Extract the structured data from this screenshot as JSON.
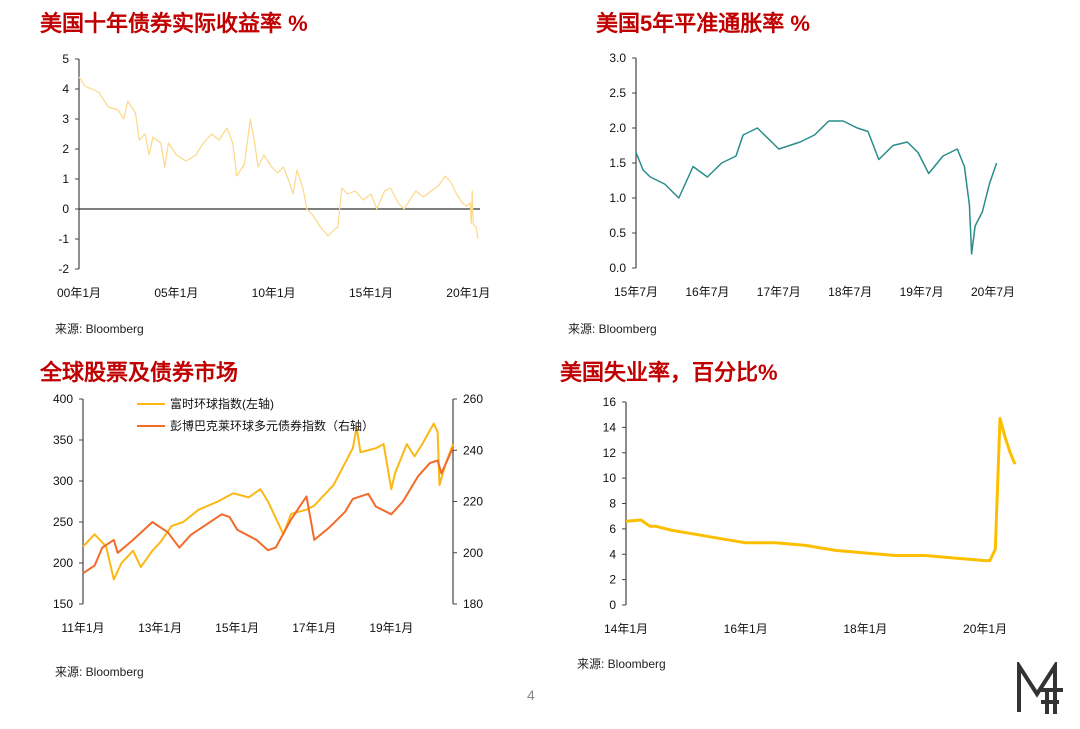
{
  "page_number": "4",
  "logo_text": "MF",
  "source_label": "来源: Bloomberg",
  "chart_data": [
    {
      "type": "line",
      "title": "美国十年债券实际收益率 %",
      "source": "来源: Bloomberg",
      "ylim": [
        -2,
        5
      ],
      "yticks": [
        "-2",
        "-1",
        "0",
        "1",
        "2",
        "3",
        "4",
        "5"
      ],
      "xlim": [
        2000.0,
        2020.6
      ],
      "xticks": [
        {
          "x": 2000.0,
          "label": "00年1月"
        },
        {
          "x": 2005.0,
          "label": "05年1月"
        },
        {
          "x": 2010.0,
          "label": "10年1月"
        },
        {
          "x": 2015.0,
          "label": "15年1月"
        },
        {
          "x": 2020.0,
          "label": "20年1月"
        }
      ],
      "zero_line": true,
      "grid": false,
      "series": [
        {
          "color": "#fcd98a",
          "x": [
            2000.0,
            2000.3,
            2001.0,
            2001.5,
            2002.0,
            2002.3,
            2002.5,
            2002.9,
            2003.1,
            2003.4,
            2003.6,
            2003.8,
            2004.2,
            2004.4,
            2004.6,
            2005.0,
            2005.5,
            2006.0,
            2006.4,
            2006.8,
            2007.2,
            2007.6,
            2007.9,
            2008.1,
            2008.5,
            2008.8,
            2009.0,
            2009.2,
            2009.5,
            2009.9,
            2010.2,
            2010.5,
            2010.8,
            2011.0,
            2011.2,
            2011.5,
            2011.7,
            2012.0,
            2012.4,
            2012.8,
            2013.1,
            2013.3,
            2013.5,
            2013.8,
            2014.2,
            2014.6,
            2015.0,
            2015.3,
            2015.7,
            2016.0,
            2016.4,
            2016.7,
            2017.0,
            2017.3,
            2017.7,
            2018.1,
            2018.5,
            2018.8,
            2019.1,
            2019.4,
            2019.7,
            2019.9,
            2020.1,
            2020.15,
            2020.2,
            2020.25,
            2020.4,
            2020.5
          ],
          "y": [
            4.4,
            4.1,
            3.9,
            3.4,
            3.3,
            3.0,
            3.6,
            3.2,
            2.3,
            2.5,
            1.8,
            2.4,
            2.2,
            1.4,
            2.2,
            1.8,
            1.6,
            1.8,
            2.2,
            2.5,
            2.3,
            2.7,
            2.2,
            1.1,
            1.5,
            3.0,
            2.3,
            1.4,
            1.8,
            1.4,
            1.2,
            1.4,
            0.9,
            0.5,
            1.3,
            0.7,
            0.0,
            -0.2,
            -0.6,
            -0.9,
            -0.7,
            -0.6,
            0.7,
            0.5,
            0.6,
            0.3,
            0.5,
            0.0,
            0.6,
            0.7,
            0.2,
            0.0,
            0.3,
            0.6,
            0.4,
            0.6,
            0.8,
            1.1,
            0.9,
            0.5,
            0.2,
            0.1,
            0.2,
            -0.5,
            0.6,
            -0.5,
            -0.6,
            -1.0
          ]
        }
      ]
    },
    {
      "type": "line",
      "title": "美国5年平准通胀率 %",
      "source": "来源: Bloomberg",
      "ylim": [
        0,
        3
      ],
      "yticks": [
        "0.0",
        "0.5",
        "1.0",
        "1.5",
        "2.0",
        "2.5",
        "3.0"
      ],
      "xlim": [
        2015.5,
        2020.5
      ],
      "xticks": [
        {
          "x": 2015.5,
          "label": "15年7月"
        },
        {
          "x": 2016.5,
          "label": "16年7月"
        },
        {
          "x": 2017.5,
          "label": "17年7月"
        },
        {
          "x": 2018.5,
          "label": "18年7月"
        },
        {
          "x": 2019.5,
          "label": "19年7月"
        },
        {
          "x": 2020.5,
          "label": "20年7月"
        }
      ],
      "grid": false,
      "series": [
        {
          "color": "#2a8c8a",
          "x": [
            2015.5,
            2015.6,
            2015.7,
            2015.9,
            2016.1,
            2016.3,
            2016.5,
            2016.7,
            2016.9,
            2017.0,
            2017.2,
            2017.35,
            2017.5,
            2017.8,
            2018.0,
            2018.2,
            2018.4,
            2018.6,
            2018.75,
            2018.9,
            2019.1,
            2019.3,
            2019.45,
            2019.6,
            2019.8,
            2020.0,
            2020.1,
            2020.17,
            2020.2,
            2020.25,
            2020.35,
            2020.45,
            2020.55
          ],
          "y": [
            1.65,
            1.4,
            1.3,
            1.2,
            1.0,
            1.45,
            1.3,
            1.5,
            1.6,
            1.9,
            2.0,
            1.85,
            1.7,
            1.8,
            1.9,
            2.1,
            2.1,
            2.0,
            1.95,
            1.55,
            1.75,
            1.8,
            1.65,
            1.35,
            1.6,
            1.7,
            1.45,
            0.9,
            0.2,
            0.6,
            0.8,
            1.2,
            1.5
          ]
        }
      ]
    },
    {
      "type": "line",
      "title": "全球股票及债券市场",
      "source": "来源: Bloomberg",
      "ylim": [
        150,
        400
      ],
      "yticks": [
        "150",
        "200",
        "250",
        "300",
        "350",
        "400"
      ],
      "y2lim": [
        180,
        260
      ],
      "y2ticks": [
        "180",
        "200",
        "220",
        "240",
        "260"
      ],
      "xlim": [
        2011.0,
        2020.6
      ],
      "xticks": [
        {
          "x": 2011.0,
          "label": "11年1月"
        },
        {
          "x": 2013.0,
          "label": "13年1月"
        },
        {
          "x": 2015.0,
          "label": "15年1月"
        },
        {
          "x": 2017.0,
          "label": "17年1月"
        },
        {
          "x": 2019.0,
          "label": "19年1月"
        }
      ],
      "legend_position": "top",
      "grid": false,
      "series": [
        {
          "name": "富时环球指数(左轴)",
          "axis": "left",
          "color": "#fbb815",
          "x": [
            2011.0,
            2011.3,
            2011.6,
            2011.8,
            2012.0,
            2012.3,
            2012.5,
            2012.8,
            2013.0,
            2013.3,
            2013.6,
            2014.0,
            2014.5,
            2014.9,
            2015.3,
            2015.6,
            2015.8,
            2016.0,
            2016.2,
            2016.4,
            2016.8,
            2017.0,
            2017.5,
            2018.0,
            2018.1,
            2018.2,
            2018.6,
            2018.8,
            2019.0,
            2019.1,
            2019.4,
            2019.6,
            2019.8,
            2020.1,
            2020.2,
            2020.25,
            2020.4,
            2020.6
          ],
          "y": [
            220,
            235,
            220,
            180,
            200,
            215,
            195,
            215,
            225,
            245,
            250,
            265,
            275,
            285,
            280,
            290,
            275,
            255,
            235,
            260,
            265,
            270,
            295,
            340,
            365,
            335,
            340,
            345,
            290,
            310,
            345,
            330,
            345,
            370,
            360,
            295,
            320,
            345
          ]
        },
        {
          "name": "彭博巴克莱环球多元债券指数（右轴）",
          "axis": "right",
          "color": "#f26b2a",
          "x": [
            2011.0,
            2011.3,
            2011.5,
            2011.8,
            2011.9,
            2012.3,
            2012.8,
            2013.2,
            2013.5,
            2013.8,
            2014.2,
            2014.6,
            2014.8,
            2015.0,
            2015.5,
            2015.8,
            2016.0,
            2016.4,
            2016.8,
            2017.0,
            2017.4,
            2017.8,
            2018.0,
            2018.4,
            2018.6,
            2019.0,
            2019.3,
            2019.7,
            2020.0,
            2020.2,
            2020.3,
            2020.6
          ],
          "y": [
            192,
            195,
            202,
            205,
            200,
            205,
            212,
            208,
            202,
            207,
            211,
            215,
            214,
            209,
            205,
            201,
            202,
            213,
            222,
            205,
            210,
            216,
            221,
            223,
            218,
            215,
            220,
            230,
            235,
            236,
            231,
            241
          ]
        }
      ]
    },
    {
      "type": "line",
      "title": "美国失业率，百分比%",
      "source": "来源: Bloomberg",
      "ylim": [
        0,
        16
      ],
      "yticks": [
        "0",
        "2",
        "4",
        "6",
        "8",
        "10",
        "12",
        "14",
        "16"
      ],
      "xlim": [
        2014.0,
        2020.5
      ],
      "xticks": [
        {
          "x": 2014.0,
          "label": "14年1月"
        },
        {
          "x": 2016.0,
          "label": "16年1月"
        },
        {
          "x": 2018.0,
          "label": "18年1月"
        },
        {
          "x": 2020.0,
          "label": "20年1月"
        }
      ],
      "grid": false,
      "series": [
        {
          "color": "#fcbf00",
          "x": [
            2014.0,
            2014.25,
            2014.4,
            2014.5,
            2014.75,
            2015.0,
            2015.25,
            2015.5,
            2016.0,
            2016.5,
            2017.0,
            2017.5,
            2018.0,
            2018.5,
            2019.0,
            2019.5,
            2020.0,
            2020.08,
            2020.17,
            2020.25,
            2020.33,
            2020.42,
            2020.5
          ],
          "y": [
            6.6,
            6.7,
            6.2,
            6.2,
            5.9,
            5.7,
            5.5,
            5.3,
            4.9,
            4.9,
            4.7,
            4.3,
            4.1,
            3.9,
            3.9,
            3.7,
            3.5,
            3.5,
            4.4,
            14.7,
            13.3,
            12.0,
            11.1
          ]
        }
      ]
    }
  ]
}
